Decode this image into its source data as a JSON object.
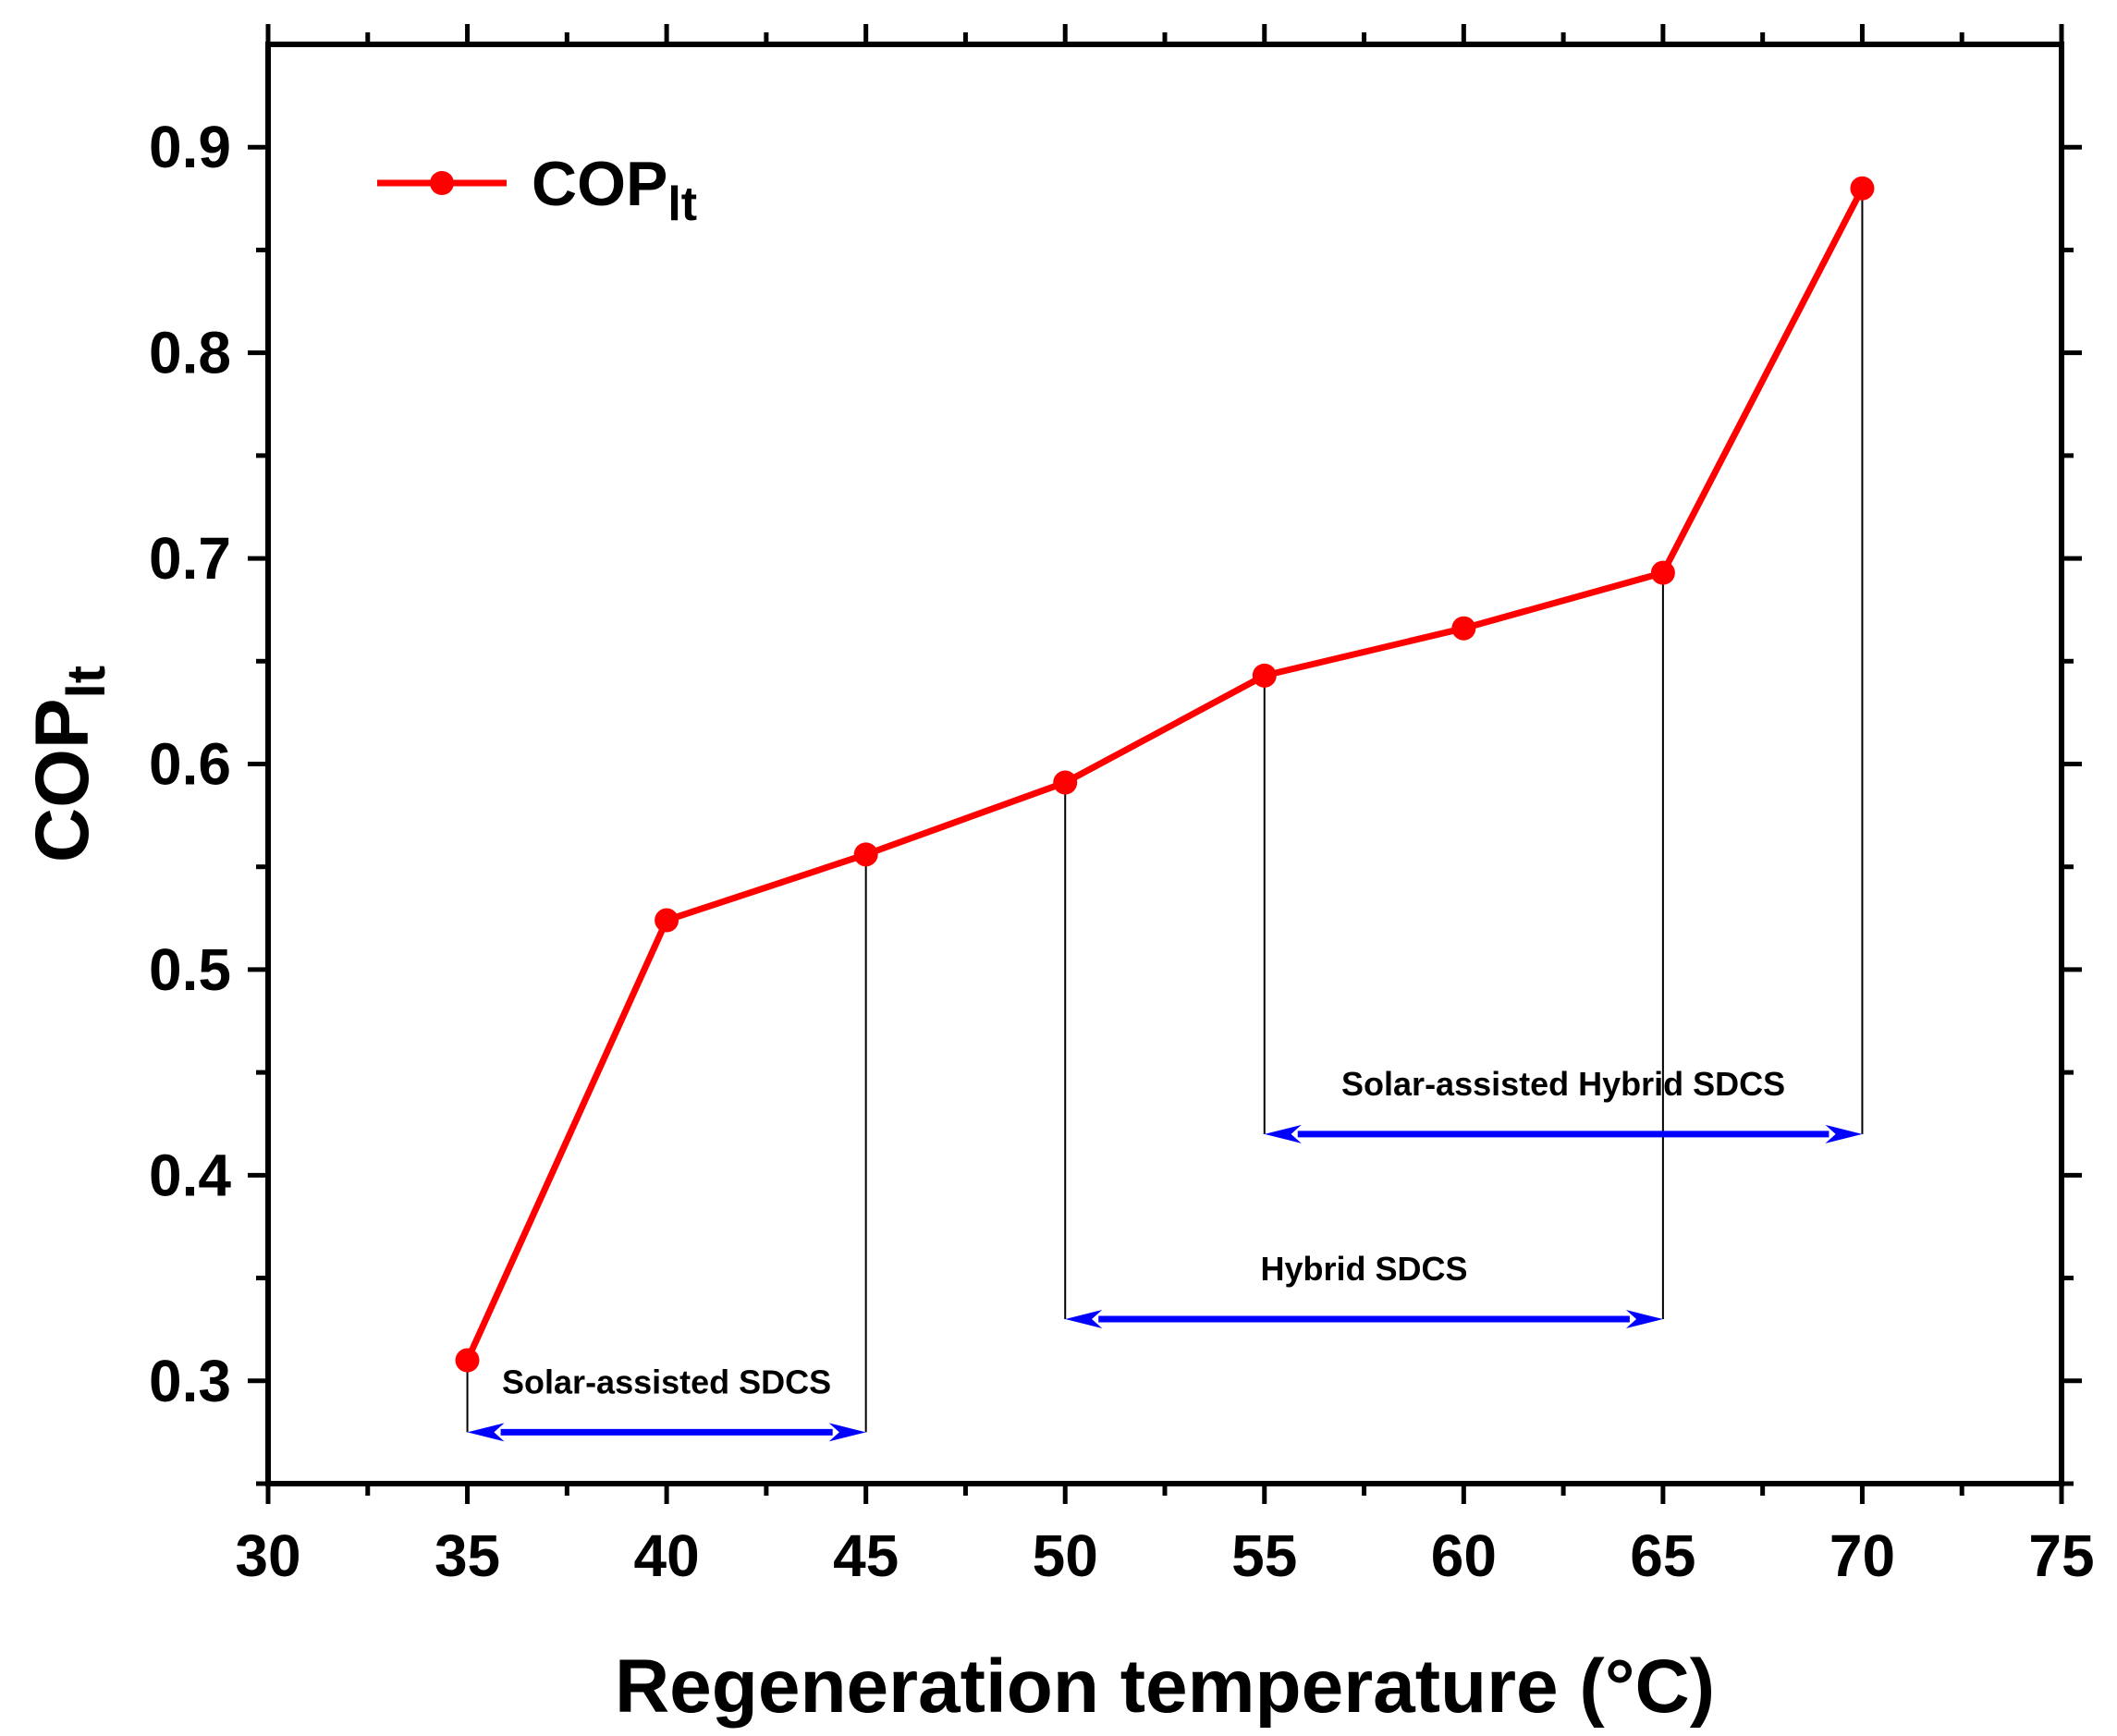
{
  "chart_data": {
    "type": "line",
    "xlabel": "Regeneration temperature (°C)",
    "ylabel": {
      "base": "COP",
      "subscript": "lt"
    },
    "xlim": [
      30,
      75
    ],
    "ylim": [
      0.25,
      0.95
    ],
    "xticks": [
      30,
      35,
      40,
      45,
      50,
      55,
      60,
      65,
      70,
      75
    ],
    "xtick_labels": [
      "30",
      "35",
      "40",
      "45",
      "50",
      "55",
      "60",
      "65",
      "70",
      "75"
    ],
    "yticks": [
      0.3,
      0.4,
      0.5,
      0.6,
      0.7,
      0.8,
      0.9
    ],
    "ytick_labels": [
      "0.3",
      "0.4",
      "0.5",
      "0.6",
      "0.7",
      "0.8",
      "0.9"
    ],
    "grid": false,
    "legend_position": "top-left",
    "series": [
      {
        "name": {
          "base": "COP",
          "subscript": "lt"
        },
        "color": "#ff0000",
        "marker": "circle",
        "x": [
          35,
          40,
          45,
          50,
          55,
          60,
          65,
          70
        ],
        "y": [
          0.31,
          0.524,
          0.556,
          0.591,
          0.643,
          0.666,
          0.693,
          0.88
        ]
      }
    ],
    "ranges": [
      {
        "label": "Solar-assisted SDCS",
        "x_start": 35,
        "x_end": 45,
        "y_level": 0.275
      },
      {
        "label": "Hybrid SDCS",
        "x_start": 50,
        "x_end": 65,
        "y_level": 0.33
      },
      {
        "label": "Solar-assisted Hybrid SDCS",
        "x_start": 55,
        "x_end": 70,
        "y_level": 0.42
      }
    ],
    "range_color": "#0000ff"
  }
}
